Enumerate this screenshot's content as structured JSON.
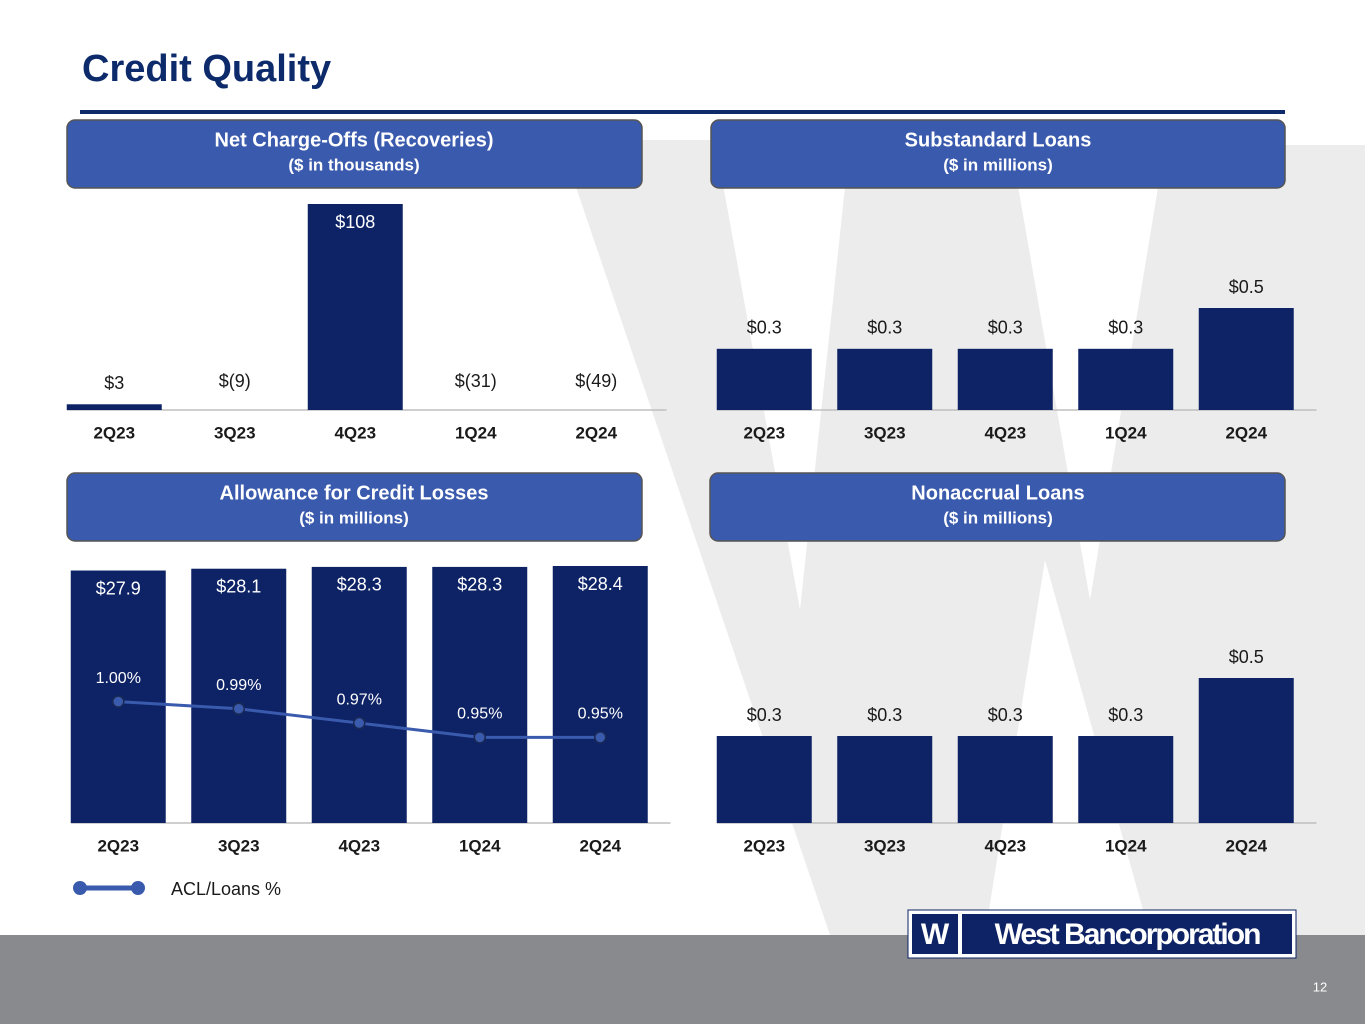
{
  "page": {
    "title": "Credit Quality",
    "number": "12"
  },
  "logo": {
    "mark": "W",
    "text": "West Bancorporation"
  },
  "chart_data": [
    {
      "type": "bar",
      "title": "Net Charge-Offs (Recoveries)",
      "subtitle": "($ in thousands)",
      "categories": [
        "2Q23",
        "3Q23",
        "4Q23",
        "1Q24",
        "2Q24"
      ],
      "values": [
        3,
        -9,
        108,
        -31,
        -49
      ],
      "value_labels": [
        "$3",
        "$(9)",
        "$108",
        "$(31)",
        "$(49)"
      ],
      "color": "#0e2366",
      "ylim": [
        0,
        108
      ]
    },
    {
      "type": "bar",
      "title": "Substandard Loans",
      "subtitle": "($ in millions)",
      "categories": [
        "2Q23",
        "3Q23",
        "4Q23",
        "1Q24",
        "2Q24"
      ],
      "values": [
        0.3,
        0.3,
        0.3,
        0.3,
        0.5
      ],
      "value_labels": [
        "$0.3",
        "$0.3",
        "$0.3",
        "$0.3",
        "$0.5"
      ],
      "color": "#0e2366",
      "ylim": [
        0,
        0.5
      ]
    },
    {
      "type": "bar",
      "title": "Allowance for Credit Losses",
      "subtitle": "($ in millions)",
      "categories": [
        "2Q23",
        "3Q23",
        "4Q23",
        "1Q24",
        "2Q24"
      ],
      "series": [
        {
          "color": "#0e2366",
          "values": [
            27.9,
            28.1,
            28.3,
            28.3,
            28.4
          ],
          "value_labels": [
            "$27.9",
            "$28.1",
            "$28.3",
            "$28.3",
            "$28.4"
          ]
        },
        {
          "name": "ACL/Loans %",
          "axis": "y2",
          "color": "#3a5aad",
          "values": [
            1.0,
            0.99,
            0.97,
            0.95,
            0.95
          ],
          "value_labels": [
            "1.00%",
            "0.99%",
            "0.97%",
            "0.95%",
            "0.95%"
          ]
        }
      ],
      "ylim": [
        0,
        28.4
      ],
      "y2lim": [
        0.83,
        1.19
      ]
    },
    {
      "type": "bar",
      "title": "Nonaccrual Loans",
      "subtitle": "($ in millions)",
      "categories": [
        "2Q23",
        "3Q23",
        "4Q23",
        "1Q24",
        "2Q24"
      ],
      "values": [
        0.3,
        0.3,
        0.3,
        0.3,
        0.5
      ],
      "value_labels": [
        "$0.3",
        "$0.3",
        "$0.3",
        "$0.3",
        "$0.5"
      ],
      "color": "#0e2366",
      "ylim": [
        0,
        0.5
      ]
    }
  ]
}
